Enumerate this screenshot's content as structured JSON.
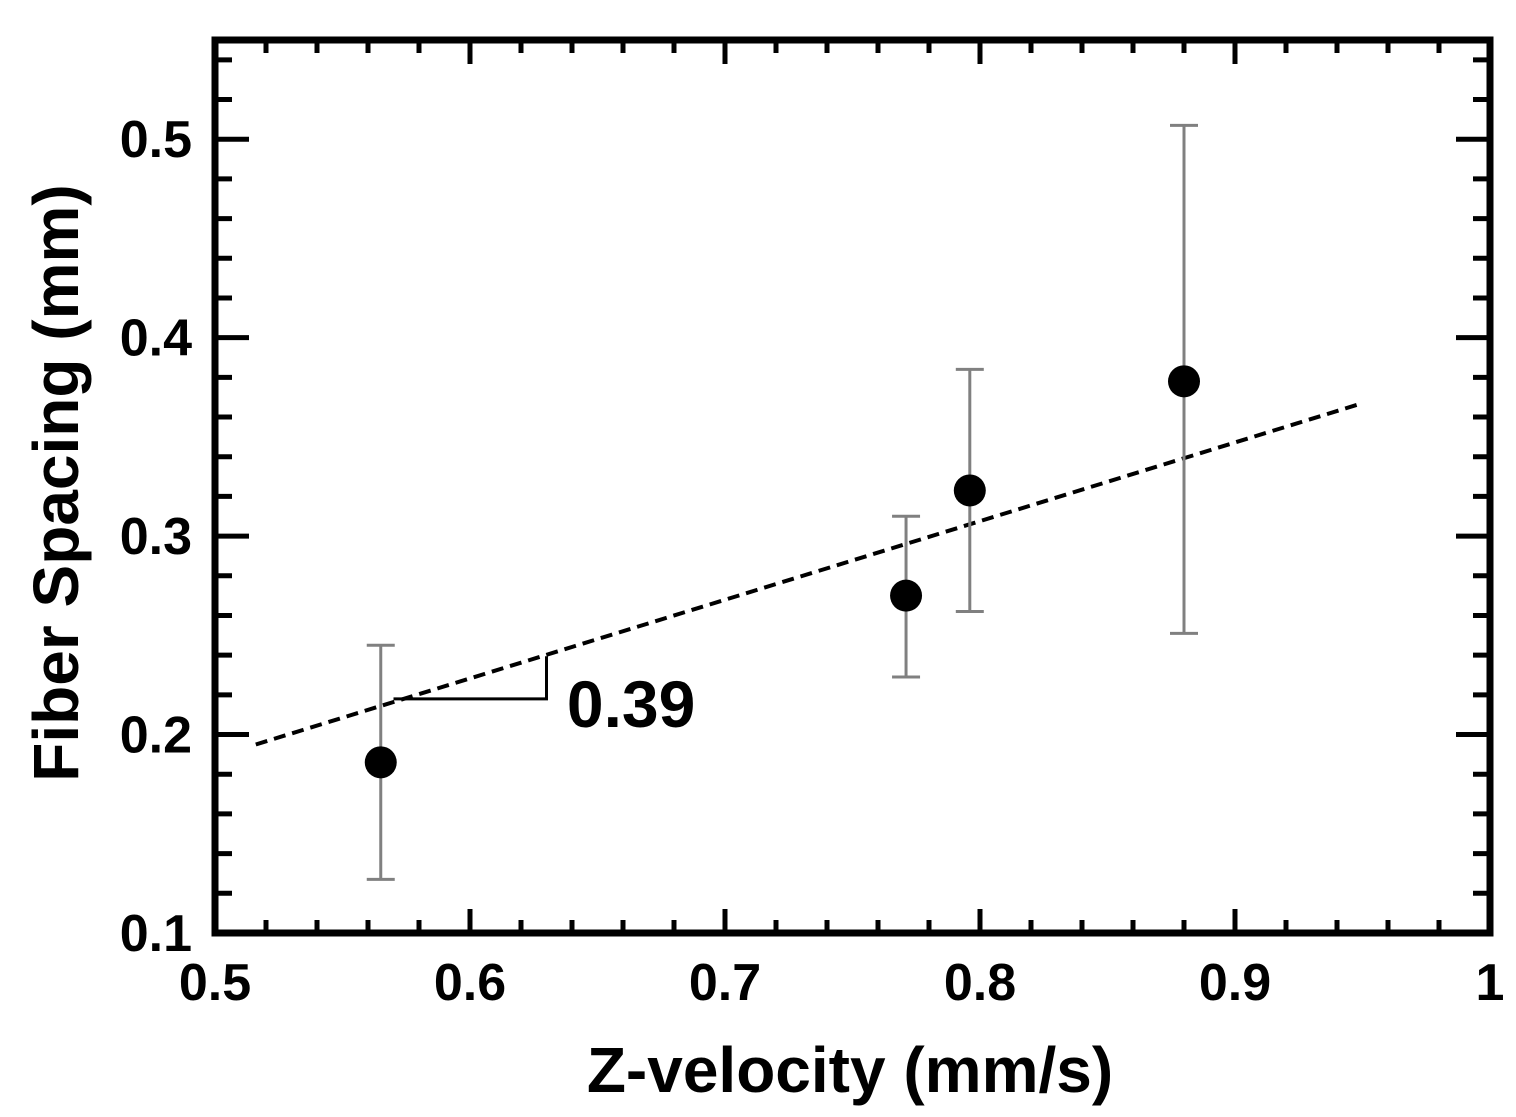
{
  "chart_data": {
    "type": "scatter",
    "title": "",
    "xlabel": "Z-velocity (mm/s)",
    "ylabel": "Fiber Spacing (mm)",
    "xlim": [
      0.5,
      1.0
    ],
    "ylim": [
      0.1,
      0.55
    ],
    "x_ticks": [
      0.5,
      0.6,
      0.7,
      0.8,
      0.9,
      1.0
    ],
    "x_tick_labels": [
      "0.5",
      "0.6",
      "0.7",
      "0.8",
      "0.9",
      "1"
    ],
    "y_ticks": [
      0.1,
      0.2,
      0.3,
      0.4,
      0.5
    ],
    "y_tick_labels": [
      "0.1",
      "0.2",
      "0.3",
      "0.4",
      "0.5"
    ],
    "grid": false,
    "legend": "none",
    "series": [
      {
        "name": "Fiber spacing",
        "marker": "filled-circle",
        "color": "#000000",
        "points": [
          {
            "x": 0.565,
            "y": 0.186,
            "y_low": 0.127,
            "y_high": 0.245
          },
          {
            "x": 0.771,
            "y": 0.27,
            "y_low": 0.229,
            "y_high": 0.31
          },
          {
            "x": 0.796,
            "y": 0.323,
            "y_low": 0.262,
            "y_high": 0.384
          },
          {
            "x": 0.88,
            "y": 0.378,
            "y_low": 0.251,
            "y_high": 0.507
          }
        ]
      }
    ],
    "fit_line": {
      "style": "dashed",
      "color": "#000000",
      "slope": 0.39,
      "x_start": 0.516,
      "y_start": 0.195,
      "x_end": 0.95,
      "y_end": 0.367
    },
    "annotations": [
      {
        "text": "0.39",
        "type": "slope-triangle",
        "triangle_x": [
          0.57,
          0.63
        ],
        "base_y": 0.218,
        "label_x": 0.638,
        "label_y": 0.215
      }
    ],
    "errorbar_color": "#808080"
  }
}
